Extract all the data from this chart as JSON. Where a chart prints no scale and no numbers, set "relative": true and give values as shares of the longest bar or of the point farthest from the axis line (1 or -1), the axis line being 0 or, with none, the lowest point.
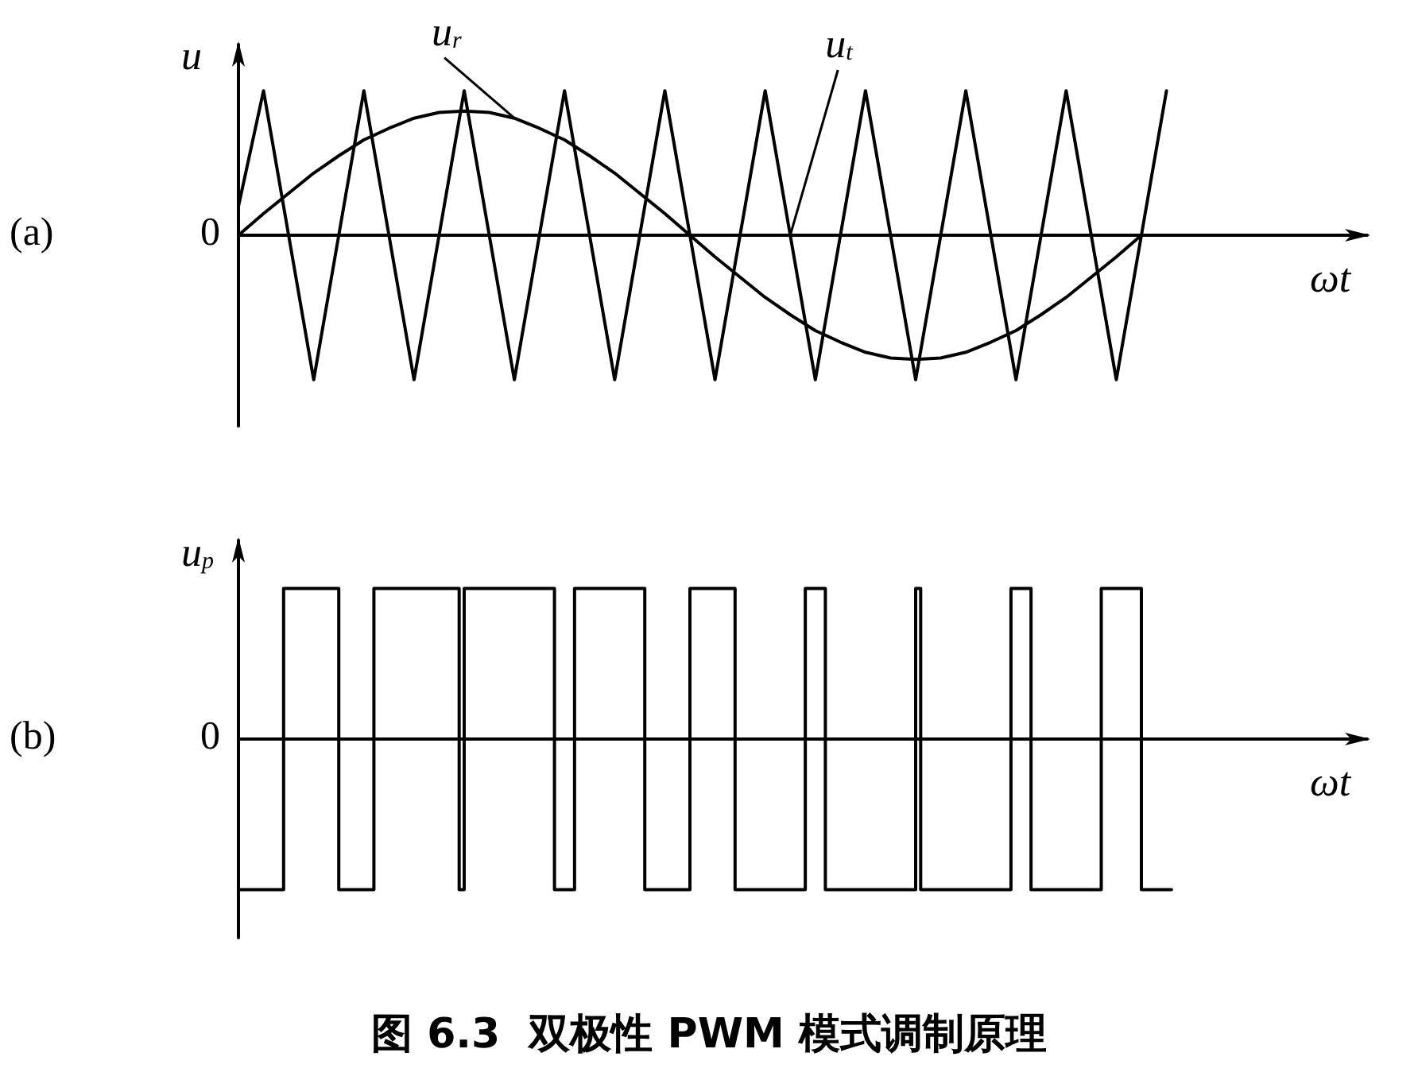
{
  "chart_data": [
    {
      "type": "line",
      "relative": true,
      "ylabel": "u",
      "xlabel": "ωt",
      "annotations": [
        "(a)",
        "0"
      ],
      "legend": false,
      "marker": "none",
      "categories": [
        null,
        null,
        null,
        null,
        null,
        null,
        null,
        null,
        null,
        null,
        null,
        null,
        null,
        null,
        null,
        null,
        null,
        null,
        null,
        null,
        null,
        null,
        null,
        null,
        null,
        null,
        null,
        null,
        null,
        null,
        null,
        null,
        null,
        null,
        null,
        null,
        null,
        null,
        null,
        null,
        null,
        null,
        null,
        null,
        null,
        null
      ],
      "series": [
        {
          "name": "u$_{r}$",
          "color": "#000000",
          "values": [
            0,
            0.15,
            0.29,
            0.43,
            0.55,
            0.66,
            0.74,
            0.81,
            0.85,
            0.86,
            0.85,
            0.81,
            0.74,
            0.66,
            0.55,
            0.43,
            0.29,
            0.15,
            0,
            -0.15,
            -0.29,
            -0.43,
            -0.55,
            -0.66,
            -0.74,
            -0.81,
            -0.85,
            -0.86,
            -0.85,
            -0.81,
            -0.74,
            -0.66,
            -0.55,
            -0.43,
            -0.29,
            -0.15,
            0,
            null,
            null,
            null,
            null,
            null,
            null,
            null,
            null,
            null
          ]
        },
        {
          "name": "u$_{t}$",
          "color": "#000000",
          "values": [
            0.2,
            1,
            0,
            -1,
            0,
            1,
            0,
            -1,
            0,
            1,
            0,
            -1,
            0,
            1,
            0,
            -1,
            0,
            1,
            0,
            -1,
            0,
            1,
            0,
            -1,
            0,
            1,
            0,
            -1,
            0,
            1,
            0,
            -1,
            0,
            1,
            0,
            -1,
            0,
            1,
            null,
            null,
            null,
            null,
            null,
            null,
            null,
            null
          ]
        }
      ]
    },
    {
      "type": "step",
      "relative": true,
      "ylabel": "u$_{p}$",
      "xlabel": "ωt",
      "annotations": [
        "(b)",
        "0"
      ],
      "title": "图 6.3  双极性 PWM 模式调制原理",
      "legend": false,
      "marker": "none",
      "categories": [
        null,
        null,
        null,
        null,
        null,
        null,
        null,
        null,
        null,
        null,
        null,
        null,
        null,
        null,
        null,
        null,
        null,
        null,
        null,
        null,
        null,
        null,
        null,
        null,
        null,
        null,
        null,
        null,
        null,
        null,
        null,
        null,
        null,
        null,
        null,
        null,
        null,
        null,
        null,
        null,
        null,
        null,
        null,
        null,
        null,
        null,
        null,
        null,
        null,
        null,
        null,
        null,
        null,
        null,
        null,
        null,
        null,
        null,
        null,
        null,
        null,
        null,
        null,
        null,
        null,
        null,
        null,
        null,
        null,
        null,
        null,
        null,
        null,
        null,
        null,
        null,
        null,
        null,
        null,
        null,
        null,
        null,
        null,
        null,
        null,
        null,
        null,
        null,
        null,
        null,
        null,
        null,
        null,
        null,
        null,
        null,
        null,
        null,
        null,
        null,
        null,
        null,
        null,
        null,
        null,
        null,
        null,
        null,
        null,
        null,
        null,
        null,
        null,
        null,
        null,
        null,
        null,
        null,
        null,
        null,
        null,
        null,
        null,
        null,
        null,
        null,
        null,
        null,
        null,
        null,
        null,
        null,
        null,
        null,
        null,
        null,
        null,
        null,
        null,
        null,
        null,
        null,
        null,
        null,
        null,
        null,
        null,
        null,
        null,
        null,
        null,
        null,
        null,
        null,
        null,
        null,
        null,
        null,
        null,
        null,
        null,
        null,
        null,
        null,
        null,
        null,
        null,
        null,
        null,
        null,
        null,
        null,
        null,
        null,
        null,
        null,
        null,
        null,
        null,
        null,
        null,
        null,
        null,
        null,
        null,
        null,
        null,
        null,
        null,
        null,
        null,
        null,
        null,
        null,
        null,
        null,
        null,
        null,
        null,
        null,
        null,
        null,
        null,
        null,
        null,
        null,
        null,
        null,
        null,
        null,
        null,
        null,
        null,
        null,
        null,
        null,
        null,
        null,
        null,
        null,
        null,
        null,
        null,
        null,
        null,
        null
      ],
      "series": [
        {
          "color": "#000000",
          "values": [
            -1,
            -1,
            -1,
            -1,
            -1,
            -1,
            -1,
            -1,
            -1,
            1,
            1,
            1,
            1,
            1,
            1,
            1,
            1,
            1,
            1,
            1,
            -1,
            -1,
            -1,
            -1,
            -1,
            -1,
            -1,
            1,
            1,
            1,
            1,
            1,
            1,
            1,
            1,
            1,
            1,
            1,
            1,
            1,
            1,
            1,
            1,
            1,
            -1,
            1,
            1,
            1,
            1,
            1,
            1,
            1,
            1,
            1,
            1,
            1,
            1,
            1,
            1,
            1,
            1,
            1,
            1,
            -1,
            -1,
            -1,
            -1,
            1,
            1,
            1,
            1,
            1,
            1,
            1,
            1,
            1,
            1,
            1,
            1,
            1,
            1,
            -1,
            -1,
            -1,
            -1,
            -1,
            -1,
            -1,
            -1,
            -1,
            1,
            1,
            1,
            1,
            1,
            1,
            1,
            1,
            1,
            -1,
            -1,
            -1,
            -1,
            -1,
            -1,
            -1,
            -1,
            -1,
            -1,
            -1,
            -1,
            -1,
            -1,
            1,
            1,
            1,
            1,
            -1,
            -1,
            -1,
            -1,
            -1,
            -1,
            -1,
            -1,
            -1,
            -1,
            -1,
            -1,
            -1,
            -1,
            -1,
            -1,
            -1,
            -1,
            1,
            -1,
            -1,
            -1,
            -1,
            -1,
            -1,
            -1,
            -1,
            -1,
            -1,
            -1,
            -1,
            -1,
            -1,
            -1,
            -1,
            -1,
            -1,
            1,
            1,
            1,
            1,
            -1,
            -1,
            -1,
            -1,
            -1,
            -1,
            -1,
            -1,
            -1,
            -1,
            -1,
            -1,
            -1,
            -1,
            1,
            1,
            1,
            1,
            1,
            1,
            1,
            1,
            -1,
            -1,
            -1,
            -1,
            -1,
            -1,
            null,
            null,
            null,
            null,
            null,
            null,
            null,
            null,
            null,
            null,
            null,
            null,
            null,
            null,
            null,
            null,
            null,
            null,
            null,
            null,
            null,
            null,
            null,
            null,
            null,
            null,
            null,
            null,
            null,
            null,
            null,
            null,
            null,
            null,
            null,
            null,
            null,
            null,
            null,
            null
          ]
        }
      ]
    }
  ]
}
